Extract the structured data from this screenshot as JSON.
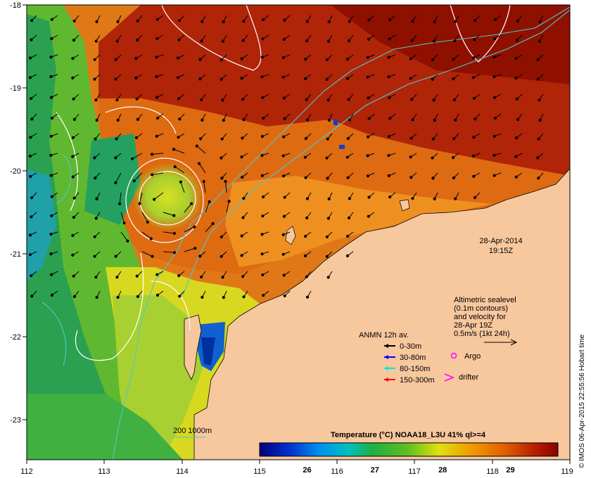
{
  "map": {
    "lon_ticks": [
      "112",
      "113",
      "114",
      "115",
      "116",
      "117",
      "118",
      "119"
    ],
    "lat_ticks": [
      "-18",
      "-19",
      "-20",
      "-21",
      "-22",
      "-23"
    ],
    "date": "28-Apr-2014",
    "time": "19:15Z",
    "credit": "© IMOS 06-Apr-2015 22:55:56 Hobart time",
    "altimetry_lines": [
      "Altimetric sealevel",
      "(0.1m contours)",
      "and velocity for",
      "28-Apr 19Z",
      "0.5m/s (1kt 24h)"
    ],
    "isobath_label": "200  1000m"
  },
  "legend": {
    "title": "ANMN 12h av.",
    "items": [
      {
        "label": "0-30m",
        "color": "#000000"
      },
      {
        "label": "30-80m",
        "color": "#0000ff"
      },
      {
        "label": "80-150m",
        "color": "#00e5e5"
      },
      {
        "label": "150-300m",
        "color": "#ff0000"
      }
    ],
    "argo_label": "Argo",
    "argo_color": "#ff00ff",
    "drifter_label": "drifter",
    "drifter_color": "#ff00ff"
  },
  "colorbar": {
    "title": "Temperature (°C) NOAA18_L3U 41% ql>=4",
    "ticks": [
      "26",
      "27",
      "28",
      "29"
    ],
    "tick_values": [
      26,
      27,
      28,
      29
    ],
    "range": [
      25.3,
      29.7
    ]
  },
  "colors": {
    "land": "#f7c79e",
    "contour": "#ffffff",
    "isobath": "#4ec9c9"
  }
}
